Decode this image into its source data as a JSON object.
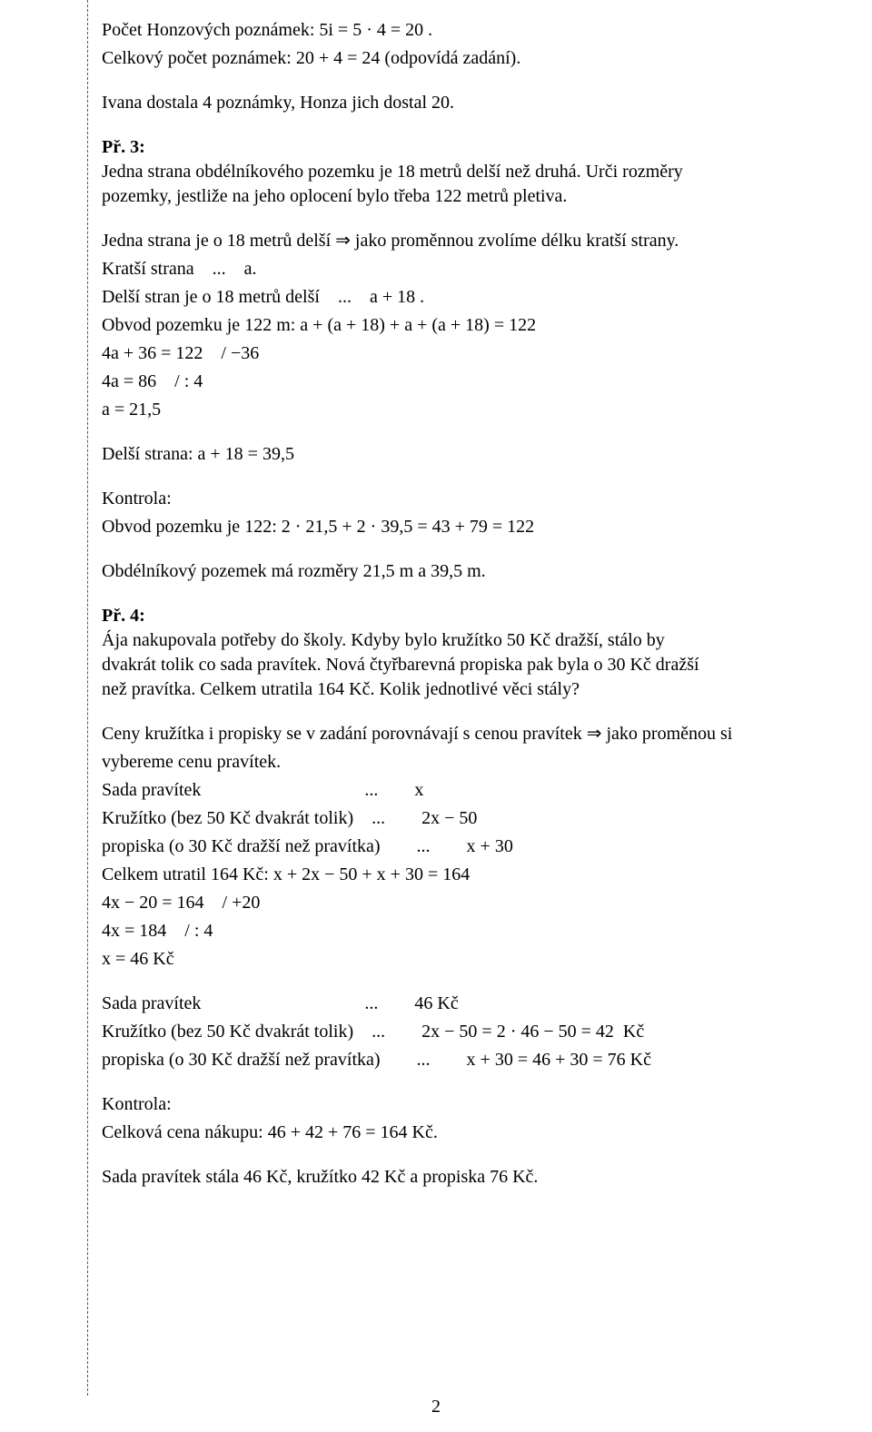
{
  "colors": {
    "text": "#000000",
    "background": "#ffffff",
    "dashed_rule": "#555555"
  },
  "typography": {
    "family": "Times New Roman",
    "body_fontsize_pt": 15,
    "line_height": 1.35
  },
  "lines": {
    "l01": "Počet Honzových poznámek: 5i = 5 · 4 = 20 .",
    "l02": "Celkový počet poznámek: 20 + 4 = 24  (odpovídá zadání).",
    "l03": "Ivana dostala 4 poznámky, Honza jich dostal 20.",
    "pr3_label": "Př. 3:",
    "pr3_text": "Jedna strana obdélníkového pozemku je 18 metrů delší než druhá. Urči rozměry pozemky, jestliže na jeho oplocení bylo třeba 122 metrů pletiva.",
    "l04": "Jedna strana je o 18 metrů delší ⇒ jako proměnnou zvolíme délku kratší strany.",
    "l05": "Kratší strana    ...    a.",
    "l06": "Delší stran je o 18 metrů delší    ...    a + 18 .",
    "l07": "Obvod pozemku je 122 m:  a + (a + 18) + a + (a + 18) = 122",
    "l08": "4a + 36 = 122    / −36",
    "l09": "4a = 86    / : 4",
    "l10": "a = 21,5",
    "l11": "Delší strana:  a + 18 = 39,5",
    "l12": "Kontrola:",
    "l13": "Obvod pozemku je 122:  2 · 21,5 + 2 · 39,5 = 43 + 79 = 122",
    "l14": "Obdélníkový pozemek má rozměry 21,5 m a 39,5 m.",
    "pr4_label": "Př. 4:",
    "pr4_text": "Ája nakupovala potřeby do školy. Kdyby bylo kružítko 50 Kč dražší, stálo by dvakrát tolik co sada pravítek. Nová čtyřbarevná propiska pak byla o 30 Kč dražší než pravítka. Celkem utratila 164 Kč. Kolik jednotlivé věci stály?",
    "l15a": "Ceny kružítka i propisky se v zadání porovnávají s cenou pravítek ⇒ jako proměnou si",
    "l15b": "vybereme cenu pravítek.",
    "l16": "Sada pravítek                                    ...        x",
    "l17": "Kružítko (bez 50 Kč dvakrát tolik)    ...        2x − 50",
    "l18": "propiska (o 30 Kč dražší než pravítka)        ...        x + 30",
    "l19": "Celkem utratil 164 Kč:  x + 2x − 50 + x + 30 = 164",
    "l20": "4x − 20 = 164    / +20",
    "l21": "4x = 184    / : 4",
    "l22": "x = 46  Kč",
    "l23": "Sada pravítek                                    ...        46 Kč",
    "l24": "Kružítko (bez 50 Kč dvakrát tolik)    ...        2x − 50 = 2 · 46 − 50 = 42  Kč",
    "l25": "propiska (o 30 Kč dražší než pravítka)        ...        x + 30 = 46 + 30 = 76 Kč",
    "l26": "Kontrola:",
    "l27": "Celková cena nákupu:  46 + 42 + 76 = 164  Kč.",
    "l28": "Sada pravítek stála 46 Kč, kružítko 42 Kč a propiska 76 Kč."
  },
  "page_number": "2"
}
